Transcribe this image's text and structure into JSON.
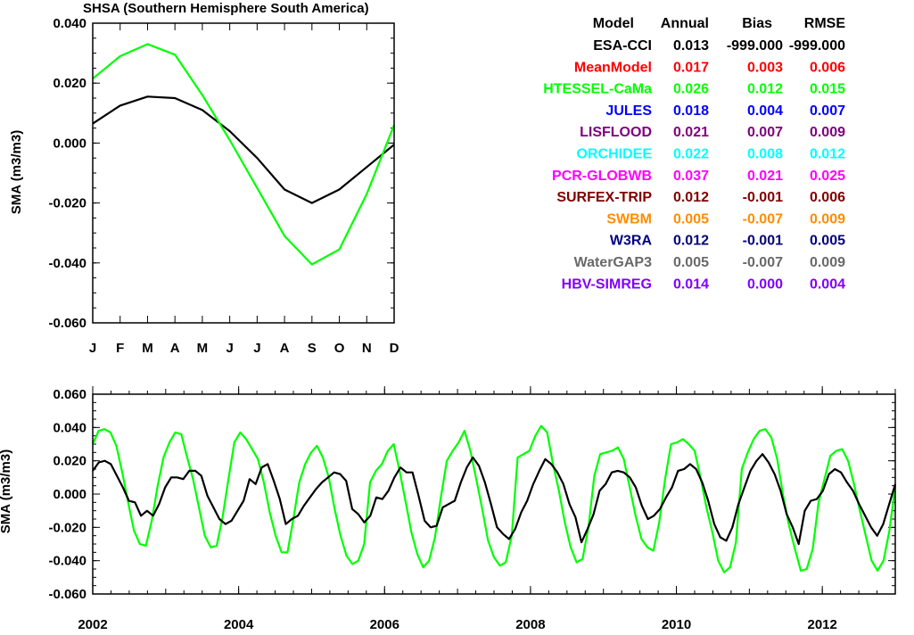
{
  "chart_data": [
    {
      "type": "line",
      "title": "SHSA (Southern Hemisphere South America)",
      "xlabel": "",
      "ylabel": "SMA (m3/m3)",
      "categories": [
        "J",
        "F",
        "M",
        "A",
        "M",
        "J",
        "J",
        "A",
        "S",
        "O",
        "N",
        "D"
      ],
      "ylim": [
        -0.06,
        0.04
      ],
      "yticks": [
        "0.040",
        "0.020",
        "0.000",
        "-0.020",
        "-0.040",
        "-0.060"
      ],
      "grid": false,
      "series": [
        {
          "key": "esa",
          "color": "#000000",
          "values": [
            0.0065,
            0.0125,
            0.0155,
            0.015,
            0.011,
            0.004,
            -0.005,
            -0.0155,
            -0.02,
            -0.0155,
            -0.008,
            -0.0005
          ]
        },
        {
          "key": "htessel",
          "color": "#00ff00",
          "values": [
            0.0215,
            0.029,
            0.033,
            0.0295,
            0.016,
            0.001,
            -0.015,
            -0.031,
            -0.0405,
            -0.0355,
            -0.017,
            0.006
          ]
        }
      ]
    },
    {
      "type": "line",
      "title": "",
      "xlabel": "",
      "ylabel": "SMA (m3/m3)",
      "xlim": [
        2002,
        2013
      ],
      "ylim": [
        -0.06,
        0.06
      ],
      "xticks": [
        "2002",
        "2004",
        "2006",
        "2008",
        "2010",
        "2012"
      ],
      "yticks": [
        "0.060",
        "0.040",
        "0.020",
        "0.000",
        "-0.020",
        "-0.040",
        "-0.060"
      ],
      "grid": false,
      "series": [
        {
          "key": "htessel",
          "color": "#00ff00",
          "values": [
            0.03,
            0.038,
            0.039,
            0.037,
            0.029,
            0.013,
            -0.005,
            -0.022,
            -0.03,
            -0.031,
            -0.016,
            0.005,
            0.022,
            0.031,
            0.037,
            0.036,
            0.022,
            0.009,
            -0.008,
            -0.025,
            -0.032,
            -0.031,
            -0.014,
            0.009,
            0.031,
            0.037,
            0.033,
            0.027,
            0.021,
            0.007,
            -0.011,
            -0.025,
            -0.035,
            -0.035,
            -0.015,
            0.007,
            0.018,
            0.025,
            0.029,
            0.022,
            0.01,
            -0.009,
            -0.025,
            -0.037,
            -0.042,
            -0.04,
            -0.03,
            0.007,
            0.014,
            0.018,
            0.026,
            0.03,
            0.014,
            -0.004,
            -0.023,
            -0.036,
            -0.044,
            -0.04,
            -0.026,
            -0.002,
            0.02,
            0.026,
            0.031,
            0.038,
            0.026,
            0.009,
            -0.009,
            -0.028,
            -0.038,
            -0.043,
            -0.041,
            -0.025,
            0.022,
            0.024,
            0.026,
            0.035,
            0.041,
            0.037,
            0.018,
            0.002,
            -0.017,
            -0.032,
            -0.041,
            -0.039,
            -0.02,
            0.011,
            0.024,
            0.025,
            0.026,
            0.028,
            0.021,
            0.004,
            -0.013,
            -0.027,
            -0.032,
            -0.034,
            -0.017,
            0.009,
            0.03,
            0.031,
            0.033,
            0.03,
            0.026,
            0.01,
            -0.008,
            -0.023,
            -0.04,
            -0.047,
            -0.044,
            -0.029,
            0.015,
            0.025,
            0.033,
            0.038,
            0.039,
            0.034,
            0.021,
            -0.001,
            -0.019,
            -0.033,
            -0.046,
            -0.045,
            -0.033,
            -0.005,
            0.009,
            0.023,
            0.026,
            0.027,
            0.02,
            0.006,
            -0.01,
            -0.025,
            -0.04,
            -0.046,
            -0.04,
            -0.022,
            0.005
          ]
        },
        {
          "key": "esa",
          "color": "#000000",
          "values": [
            0.014,
            0.019,
            0.02,
            0.018,
            0.011,
            0.004,
            -0.004,
            -0.005,
            -0.013,
            -0.01,
            -0.013,
            -0.006,
            0.004,
            0.01,
            0.01,
            0.009,
            0.014,
            0.014,
            0.011,
            -0.001,
            -0.008,
            -0.015,
            -0.018,
            -0.016,
            -0.01,
            -0.004,
            0.009,
            0.006,
            0.016,
            0.018,
            0.008,
            -0.003,
            -0.018,
            -0.015,
            -0.013,
            -0.007,
            -0.002,
            0.003,
            0.007,
            0.01,
            0.013,
            0.012,
            0.008,
            -0.009,
            -0.012,
            -0.017,
            -0.013,
            -0.002,
            -0.003,
            0.002,
            0.01,
            0.016,
            0.013,
            0.013,
            -0.001,
            -0.016,
            -0.02,
            -0.019,
            -0.008,
            -0.006,
            -0.004,
            0.007,
            0.016,
            0.022,
            0.017,
            0.007,
            -0.006,
            -0.02,
            -0.024,
            -0.027,
            -0.021,
            -0.011,
            -0.004,
            0.006,
            0.014,
            0.021,
            0.018,
            0.013,
            0.006,
            -0.006,
            -0.014,
            -0.029,
            -0.021,
            -0.012,
            0.002,
            0.006,
            0.013,
            0.014,
            0.013,
            0.01,
            0.004,
            -0.007,
            -0.015,
            -0.013,
            -0.009,
            -0.002,
            0.004,
            0.014,
            0.015,
            0.018,
            0.015,
            0.007,
            -0.004,
            -0.018,
            -0.026,
            -0.028,
            -0.02,
            -0.006,
            0.004,
            0.014,
            0.02,
            0.024,
            0.019,
            0.012,
            0.002,
            -0.012,
            -0.02,
            -0.03,
            -0.01,
            -0.004,
            -0.003,
            0.002,
            0.012,
            0.015,
            0.013,
            0.007,
            0.002,
            -0.006,
            -0.013,
            -0.02,
            -0.025,
            -0.018,
            -0.006,
            0.006
          ]
        }
      ]
    }
  ],
  "stats_table": {
    "headers": [
      "Model",
      "Annual",
      "Bias",
      "RMSE"
    ],
    "rows": [
      {
        "model": "ESA-CCI",
        "annual": "0.013",
        "bias": "-999.000",
        "rmse": "-999.000",
        "color": "#000000"
      },
      {
        "model": "MeanModel",
        "annual": "0.017",
        "bias": "0.003",
        "rmse": "0.006",
        "color": "#ff0000"
      },
      {
        "model": "HTESSEL-CaMa",
        "annual": "0.026",
        "bias": "0.012",
        "rmse": "0.015",
        "color": "#00ff00"
      },
      {
        "model": "JULES",
        "annual": "0.018",
        "bias": "0.004",
        "rmse": "0.007",
        "color": "#0000ff"
      },
      {
        "model": "LISFLOOD",
        "annual": "0.021",
        "bias": "0.007",
        "rmse": "0.009",
        "color": "#800080"
      },
      {
        "model": "ORCHIDEE",
        "annual": "0.022",
        "bias": "0.008",
        "rmse": "0.012",
        "color": "#00ffff"
      },
      {
        "model": "PCR-GLOBWB",
        "annual": "0.037",
        "bias": "0.021",
        "rmse": "0.025",
        "color": "#ff00ff"
      },
      {
        "model": "SURFEX-TRIP",
        "annual": "0.012",
        "bias": "-0.001",
        "rmse": "0.006",
        "color": "#800000"
      },
      {
        "model": "SWBM",
        "annual": "0.005",
        "bias": "-0.007",
        "rmse": "0.009",
        "color": "#ff8c00"
      },
      {
        "model": "W3RA",
        "annual": "0.012",
        "bias": "-0.001",
        "rmse": "0.005",
        "color": "#000080"
      },
      {
        "model": "WaterGAP3",
        "annual": "0.005",
        "bias": "-0.007",
        "rmse": "0.009",
        "color": "#696969"
      },
      {
        "model": "HBV-SIMREG",
        "annual": "0.014",
        "bias": "0.000",
        "rmse": "0.004",
        "color": "#8000ff"
      }
    ]
  }
}
